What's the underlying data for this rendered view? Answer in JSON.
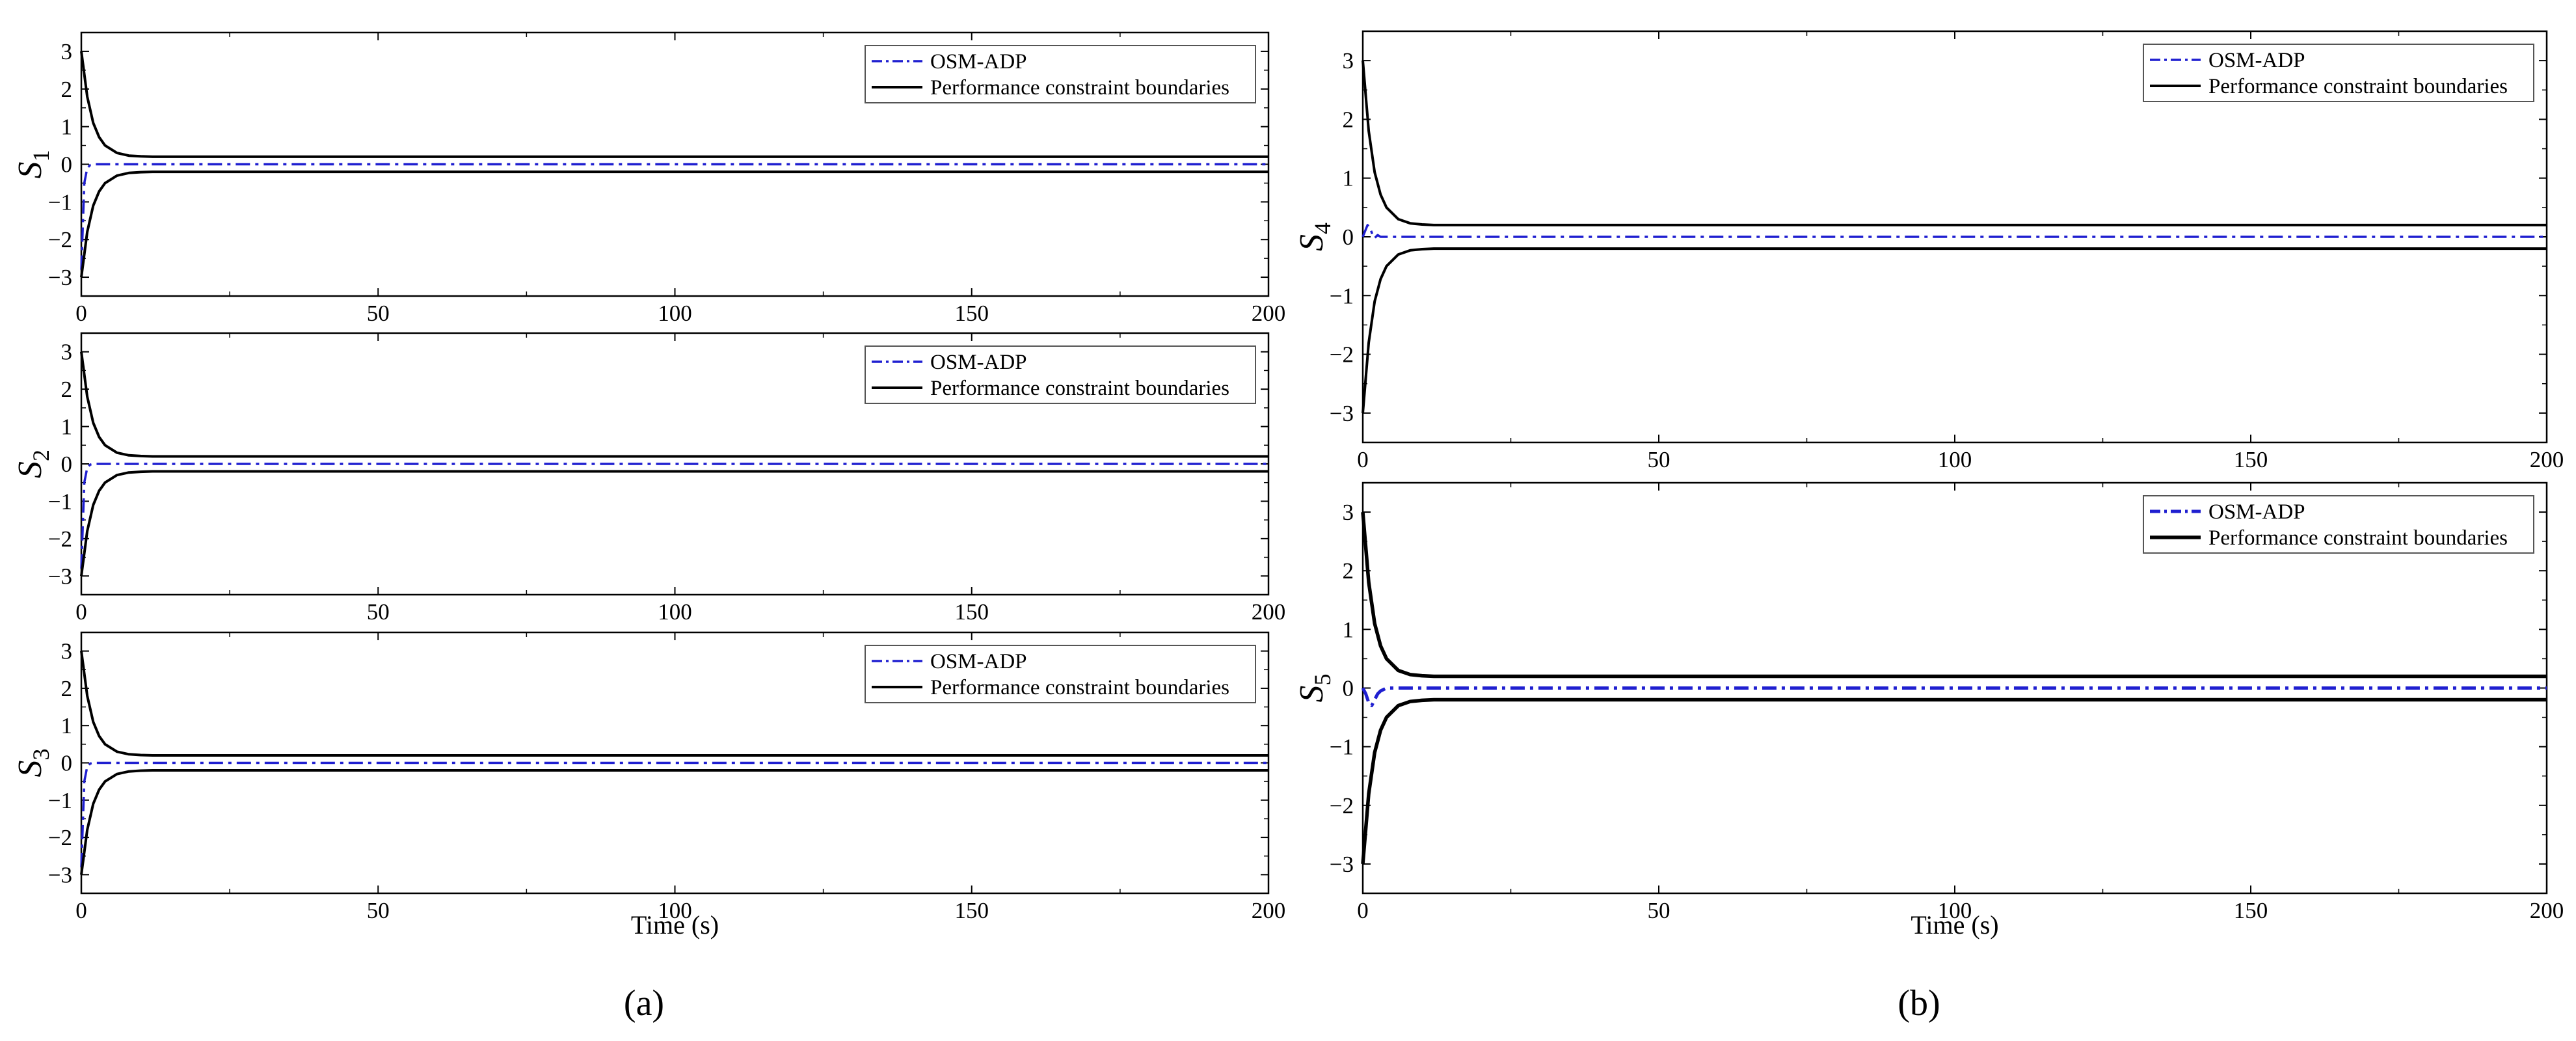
{
  "captions": {
    "left": "(a)",
    "right": "(b)"
  },
  "legend": {
    "series1": "OSM-ADP",
    "series2": "Performance constraint boundaries"
  },
  "colors": {
    "series1": "#1f1fd0",
    "series2": "#000000"
  },
  "chart_data": [
    {
      "type": "line",
      "ylabel_main": "S",
      "ylabel_sub": "1",
      "xlabel": "",
      "xlim": [
        0,
        200
      ],
      "ylim": [
        -3.5,
        3.5
      ],
      "xticks": [
        0,
        50,
        100,
        150,
        200
      ],
      "yticks": [
        -3,
        -2,
        -1,
        0,
        1,
        2,
        3
      ],
      "grid": false,
      "legend_position": "top-right",
      "series": [
        {
          "name": "OSM-ADP",
          "x": [
            0,
            0.5,
            1,
            1.5,
            2,
            3,
            5,
            10,
            200
          ],
          "y": [
            -2.8,
            -0.5,
            -0.1,
            -0.02,
            0,
            0,
            0,
            0,
            0
          ]
        },
        {
          "name": "Performance constraint boundaries",
          "x": [
            0,
            1,
            2,
            3,
            4,
            6,
            8,
            10,
            12,
            15,
            200
          ],
          "y": [
            3,
            1.8,
            1.1,
            0.72,
            0.5,
            0.3,
            0.23,
            0.21,
            0.2,
            0.2,
            0.2
          ]
        },
        {
          "name": "Performance constraint boundaries",
          "x": [
            0,
            1,
            2,
            3,
            4,
            6,
            8,
            10,
            12,
            15,
            200
          ],
          "y": [
            -3,
            -1.8,
            -1.1,
            -0.72,
            -0.5,
            -0.3,
            -0.23,
            -0.21,
            -0.2,
            -0.2,
            -0.2
          ]
        }
      ]
    },
    {
      "type": "line",
      "ylabel_main": "S",
      "ylabel_sub": "2",
      "xlabel": "",
      "xlim": [
        0,
        200
      ],
      "ylim": [
        -3.5,
        3.5
      ],
      "xticks": [
        0,
        50,
        100,
        150,
        200
      ],
      "yticks": [
        -3,
        -2,
        -1,
        0,
        1,
        2,
        3
      ],
      "grid": false,
      "legend_position": "top-right",
      "series": [
        {
          "name": "OSM-ADP",
          "x": [
            0,
            0.5,
            1,
            1.5,
            2,
            3,
            5,
            10,
            200
          ],
          "y": [
            -2.8,
            -0.5,
            -0.1,
            -0.02,
            0,
            0,
            0,
            0,
            0
          ]
        },
        {
          "name": "Performance constraint boundaries",
          "x": [
            0,
            1,
            2,
            3,
            4,
            6,
            8,
            10,
            12,
            15,
            200
          ],
          "y": [
            3,
            1.8,
            1.1,
            0.72,
            0.5,
            0.3,
            0.23,
            0.21,
            0.2,
            0.2,
            0.2
          ]
        },
        {
          "name": "Performance constraint boundaries",
          "x": [
            0,
            1,
            2,
            3,
            4,
            6,
            8,
            10,
            12,
            15,
            200
          ],
          "y": [
            -3,
            -1.8,
            -1.1,
            -0.72,
            -0.5,
            -0.3,
            -0.23,
            -0.21,
            -0.2,
            -0.2,
            -0.2
          ]
        }
      ]
    },
    {
      "type": "line",
      "ylabel_main": "S",
      "ylabel_sub": "3",
      "xlabel": "Time (s)",
      "xlim": [
        0,
        200
      ],
      "ylim": [
        -3.5,
        3.5
      ],
      "xticks": [
        0,
        50,
        100,
        150,
        200
      ],
      "yticks": [
        -3,
        -2,
        -1,
        0,
        1,
        2,
        3
      ],
      "grid": false,
      "legend_position": "top-right",
      "series": [
        {
          "name": "OSM-ADP",
          "x": [
            0,
            0.5,
            1,
            1.5,
            2,
            3,
            5,
            10,
            200
          ],
          "y": [
            -2.8,
            -0.5,
            -0.1,
            -0.02,
            0,
            0,
            0,
            0,
            0
          ]
        },
        {
          "name": "Performance constraint boundaries",
          "x": [
            0,
            1,
            2,
            3,
            4,
            6,
            8,
            10,
            12,
            15,
            200
          ],
          "y": [
            3,
            1.8,
            1.1,
            0.72,
            0.5,
            0.3,
            0.23,
            0.21,
            0.2,
            0.2,
            0.2
          ]
        },
        {
          "name": "Performance constraint boundaries",
          "x": [
            0,
            1,
            2,
            3,
            4,
            6,
            8,
            10,
            12,
            15,
            200
          ],
          "y": [
            -3,
            -1.8,
            -1.1,
            -0.72,
            -0.5,
            -0.3,
            -0.23,
            -0.21,
            -0.2,
            -0.2,
            -0.2
          ]
        }
      ]
    },
    {
      "type": "line",
      "ylabel_main": "S",
      "ylabel_sub": "4",
      "xlabel": "",
      "xlim": [
        0,
        200
      ],
      "ylim": [
        -3.5,
        3.5
      ],
      "xticks": [
        0,
        50,
        100,
        150,
        200
      ],
      "yticks": [
        -3,
        -2,
        -1,
        0,
        1,
        2,
        3
      ],
      "grid": false,
      "legend_position": "top-right",
      "series": [
        {
          "name": "OSM-ADP",
          "x": [
            0,
            0.4,
            0.8,
            1.2,
            1.6,
            2,
            2.5,
            3,
            5,
            200
          ],
          "y": [
            0,
            0.1,
            0.2,
            0.15,
            0.05,
            -0.02,
            0.03,
            0,
            0,
            0
          ]
        },
        {
          "name": "Performance constraint boundaries",
          "x": [
            0,
            1,
            2,
            3,
            4,
            6,
            8,
            10,
            12,
            15,
            200
          ],
          "y": [
            3,
            1.8,
            1.1,
            0.72,
            0.5,
            0.3,
            0.23,
            0.21,
            0.2,
            0.2,
            0.2
          ]
        },
        {
          "name": "Performance constraint boundaries",
          "x": [
            0,
            1,
            2,
            3,
            4,
            6,
            8,
            10,
            12,
            15,
            200
          ],
          "y": [
            -3,
            -1.8,
            -1.1,
            -0.72,
            -0.5,
            -0.3,
            -0.23,
            -0.21,
            -0.2,
            -0.2,
            -0.2
          ]
        }
      ]
    },
    {
      "type": "line",
      "ylabel_main": "S",
      "ylabel_sub": "5",
      "xlabel": "Time (s)",
      "xlim": [
        0,
        200
      ],
      "ylim": [
        -3.5,
        3.5
      ],
      "xticks": [
        0,
        50,
        100,
        150,
        200
      ],
      "yticks": [
        -3,
        -2,
        -1,
        0,
        1,
        2,
        3
      ],
      "grid": false,
      "legend_position": "top-right",
      "series": [
        {
          "name": "OSM-ADP",
          "x": [
            0,
            0.5,
            1,
            1.5,
            2,
            2.5,
            3,
            4,
            6,
            200
          ],
          "y": [
            0,
            -0.1,
            -0.25,
            -0.3,
            -0.2,
            -0.1,
            -0.05,
            0,
            0,
            0
          ]
        },
        {
          "name": "Performance constraint boundaries",
          "x": [
            0,
            1,
            2,
            3,
            4,
            6,
            8,
            10,
            12,
            15,
            200
          ],
          "y": [
            3,
            1.8,
            1.1,
            0.72,
            0.5,
            0.3,
            0.23,
            0.21,
            0.2,
            0.2,
            0.2
          ]
        },
        {
          "name": "Performance constraint boundaries",
          "x": [
            0,
            1,
            2,
            3,
            4,
            6,
            8,
            10,
            12,
            15,
            200
          ],
          "y": [
            -3,
            -1.8,
            -1.1,
            -0.72,
            -0.5,
            -0.3,
            -0.23,
            -0.21,
            -0.2,
            -0.2,
            -0.2
          ]
        }
      ]
    }
  ]
}
